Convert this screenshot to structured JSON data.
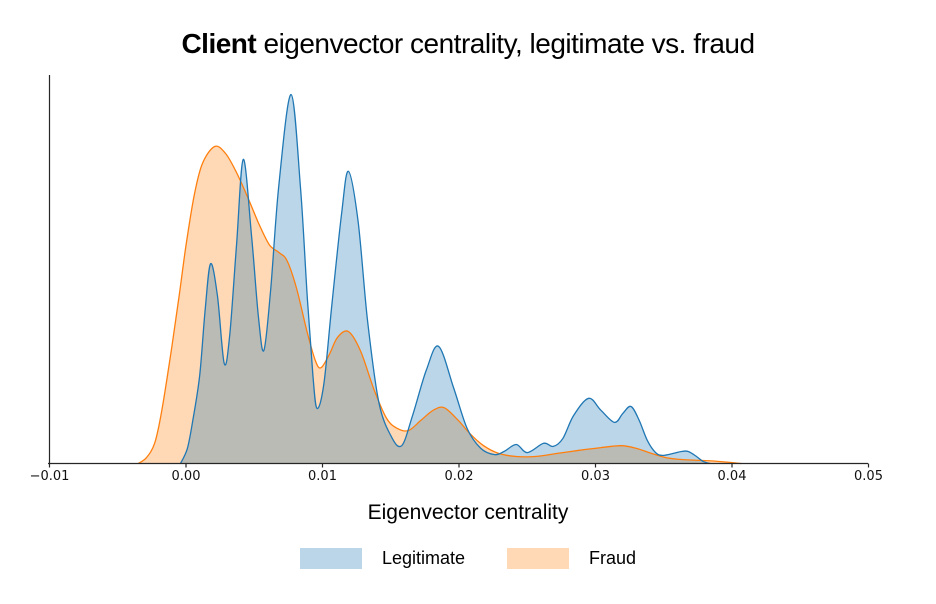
{
  "title": {
    "bold_part": "Client",
    "rest_part": " eigenvector centrality, legitimate vs. fraud"
  },
  "axes": {
    "xlabel": "Eigenvector centrality",
    "x_ticks": [
      {
        "label": "−0.01",
        "value": -0.01
      },
      {
        "label": "0.00",
        "value": 0.0
      },
      {
        "label": "0.01",
        "value": 0.01
      },
      {
        "label": "0.02",
        "value": 0.02
      },
      {
        "label": "0.03",
        "value": 0.03
      },
      {
        "label": "0.04",
        "value": 0.04
      },
      {
        "label": "0.05",
        "value": 0.05
      }
    ],
    "axis_color": "#262626"
  },
  "legend": {
    "items": [
      {
        "label": "Legitimate",
        "swatch_fill": "rgba(31,119,180,0.3)"
      },
      {
        "label": "Fraud",
        "swatch_fill": "rgba(255,127,14,0.3)"
      }
    ]
  },
  "chart_data": {
    "type": "area",
    "subtype": "kde-density",
    "title": "Client eigenvector centrality, legitimate vs. fraud",
    "xlabel": "Eigenvector centrality",
    "ylabel": "",
    "xlim": [
      -0.01,
      0.05
    ],
    "grid": false,
    "legend_position": "bottom-center",
    "y_units": "relative density (y-axis unlabeled; 1.0 = full plot height)",
    "series": [
      {
        "name": "Legitimate",
        "color": "#1f77b4",
        "fill": "rgba(31,119,180,0.3)",
        "points": [
          [
            -0.0004,
            0
          ],
          [
            0.0001,
            0.039
          ],
          [
            0.0005,
            0.111
          ],
          [
            0.001,
            0.227
          ],
          [
            0.0014,
            0.394
          ],
          [
            0.0018,
            0.515
          ],
          [
            0.0023,
            0.433
          ],
          [
            0.0028,
            0.258
          ],
          [
            0.0032,
            0.33
          ],
          [
            0.0037,
            0.562
          ],
          [
            0.0042,
            0.784
          ],
          [
            0.0048,
            0.588
          ],
          [
            0.0053,
            0.381
          ],
          [
            0.0057,
            0.291
          ],
          [
            0.0062,
            0.446
          ],
          [
            0.0068,
            0.716
          ],
          [
            0.0077,
            0.951
          ],
          [
            0.0084,
            0.704
          ],
          [
            0.0089,
            0.42
          ],
          [
            0.0093,
            0.227
          ],
          [
            0.0096,
            0.142
          ],
          [
            0.0101,
            0.206
          ],
          [
            0.0107,
            0.415
          ],
          [
            0.0114,
            0.644
          ],
          [
            0.0119,
            0.753
          ],
          [
            0.0126,
            0.626
          ],
          [
            0.0133,
            0.369
          ],
          [
            0.0141,
            0.162
          ],
          [
            0.015,
            0.072
          ],
          [
            0.0158,
            0.046
          ],
          [
            0.0166,
            0.124
          ],
          [
            0.0176,
            0.24
          ],
          [
            0.0185,
            0.302
          ],
          [
            0.0196,
            0.196
          ],
          [
            0.0206,
            0.09
          ],
          [
            0.0216,
            0.039
          ],
          [
            0.0226,
            0.023
          ],
          [
            0.0233,
            0.031
          ],
          [
            0.0242,
            0.049
          ],
          [
            0.025,
            0.028
          ],
          [
            0.0262,
            0.052
          ],
          [
            0.0269,
            0.044
          ],
          [
            0.0276,
            0.064
          ],
          [
            0.0284,
            0.124
          ],
          [
            0.0295,
            0.168
          ],
          [
            0.0304,
            0.137
          ],
          [
            0.0314,
            0.106
          ],
          [
            0.032,
            0.129
          ],
          [
            0.0326,
            0.147
          ],
          [
            0.0332,
            0.111
          ],
          [
            0.0338,
            0.059
          ],
          [
            0.0344,
            0.028
          ],
          [
            0.0349,
            0.021
          ],
          [
            0.0357,
            0.026
          ],
          [
            0.0363,
            0.031
          ],
          [
            0.0368,
            0.031
          ],
          [
            0.0374,
            0.018
          ],
          [
            0.0379,
            0.005
          ],
          [
            0.0384,
            0
          ]
        ]
      },
      {
        "name": "Fraud",
        "color": "#ff7f0e",
        "fill": "rgba(255,127,14,0.3)",
        "points": [
          [
            -0.0035,
            0
          ],
          [
            -0.0029,
            0.015
          ],
          [
            -0.0023,
            0.052
          ],
          [
            -0.0018,
            0.131
          ],
          [
            -0.0011,
            0.286
          ],
          [
            -0.0005,
            0.433
          ],
          [
            0,
            0.562
          ],
          [
            0.0006,
            0.691
          ],
          [
            0.0012,
            0.773
          ],
          [
            0.0021,
            0.817
          ],
          [
            0.0029,
            0.799
          ],
          [
            0.0037,
            0.75
          ],
          [
            0.0045,
            0.688
          ],
          [
            0.0053,
            0.621
          ],
          [
            0.0061,
            0.564
          ],
          [
            0.0068,
            0.544
          ],
          [
            0.0074,
            0.523
          ],
          [
            0.0081,
            0.451
          ],
          [
            0.0089,
            0.335
          ],
          [
            0.0095,
            0.263
          ],
          [
            0.0099,
            0.247
          ],
          [
            0.0105,
            0.281
          ],
          [
            0.0111,
            0.325
          ],
          [
            0.0119,
            0.34
          ],
          [
            0.0128,
            0.289
          ],
          [
            0.0138,
            0.188
          ],
          [
            0.0147,
            0.116
          ],
          [
            0.0155,
            0.09
          ],
          [
            0.0163,
            0.085
          ],
          [
            0.0172,
            0.111
          ],
          [
            0.0181,
            0.137
          ],
          [
            0.0189,
            0.144
          ],
          [
            0.0199,
            0.113
          ],
          [
            0.0208,
            0.077
          ],
          [
            0.0218,
            0.046
          ],
          [
            0.0229,
            0.026
          ],
          [
            0.0242,
            0.018
          ],
          [
            0.0256,
            0.018
          ],
          [
            0.0272,
            0.026
          ],
          [
            0.0288,
            0.034
          ],
          [
            0.0304,
            0.041
          ],
          [
            0.0319,
            0.046
          ],
          [
            0.033,
            0.039
          ],
          [
            0.0341,
            0.026
          ],
          [
            0.0352,
            0.015
          ],
          [
            0.0364,
            0.01
          ],
          [
            0.0377,
            0.008
          ],
          [
            0.0392,
            0.005
          ],
          [
            0.0407,
            0
          ]
        ]
      }
    ]
  }
}
